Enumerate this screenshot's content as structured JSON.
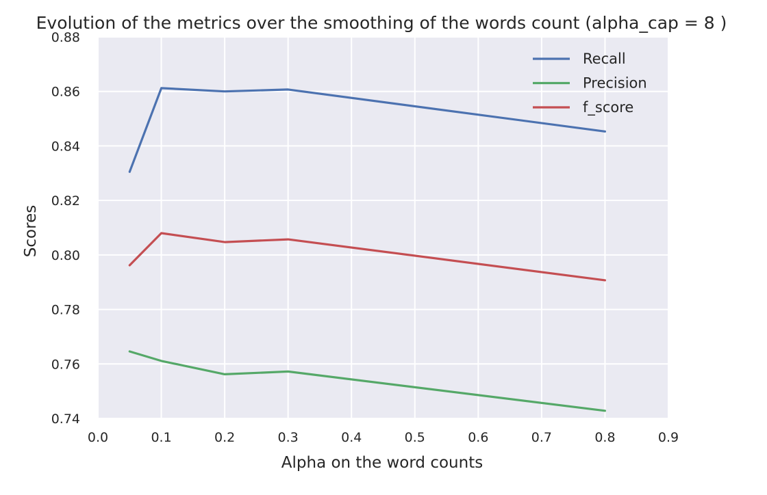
{
  "chart_data": {
    "type": "line",
    "title": "Evolution of the metrics over the smoothing of the words count (alpha_cap = 8 )",
    "xlabel": "Alpha on the word counts",
    "ylabel": "Scores",
    "xlim": [
      0.0,
      0.9
    ],
    "ylim": [
      0.74,
      0.88
    ],
    "x_ticks": [
      "0.0",
      "0.1",
      "0.2",
      "0.3",
      "0.4",
      "0.5",
      "0.6",
      "0.7",
      "0.8",
      "0.9"
    ],
    "y_ticks": [
      "0.74",
      "0.76",
      "0.78",
      "0.80",
      "0.82",
      "0.84",
      "0.86",
      "0.88"
    ],
    "grid": true,
    "legend_position": "top-right",
    "background_color": "#eaeaf2",
    "grid_color": "#ffffff",
    "x": [
      0.05,
      0.1,
      0.2,
      0.3,
      0.8
    ],
    "series": [
      {
        "name": "Recall",
        "color": "#4c72b0",
        "values": [
          0.8305,
          0.8612,
          0.86,
          0.8607,
          0.8453
        ]
      },
      {
        "name": "Precision",
        "color": "#55a868",
        "values": [
          0.7646,
          0.7611,
          0.7562,
          0.7572,
          0.7428
        ]
      },
      {
        "name": "f_score",
        "color": "#c44e52",
        "values": [
          0.7962,
          0.808,
          0.8047,
          0.8057,
          0.7907
        ]
      }
    ]
  }
}
